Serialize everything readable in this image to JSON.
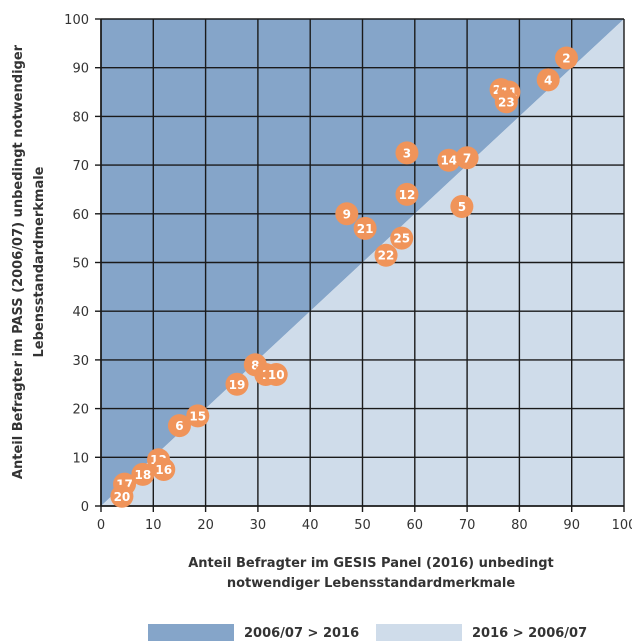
{
  "chart_data": {
    "type": "scatter",
    "title": "",
    "xlabel": [
      "Anteil Befragter im GESIS Panel (2016) unbedingt",
      "notwendiger Lebensstandardmerkmale"
    ],
    "ylabel": [
      "Anteil Befragter im PASS (2006/07) unbedingt notwendiger",
      "Lebensstandardmerkmale"
    ],
    "xlim": [
      0,
      100
    ],
    "ylim": [
      0,
      100
    ],
    "xticks": [
      0,
      10,
      20,
      30,
      40,
      50,
      60,
      70,
      80,
      90,
      100
    ],
    "yticks": [
      0,
      10,
      20,
      30,
      40,
      50,
      60,
      70,
      80,
      90,
      100
    ],
    "xtick_labels": [
      "0",
      "10",
      "20",
      "30",
      "40",
      "50",
      "60",
      "70",
      "80",
      "90",
      "100"
    ],
    "ytick_labels": [
      "0",
      "10",
      "20",
      "30",
      "40",
      "50",
      "60",
      "70",
      "80",
      "90",
      "100"
    ],
    "grid": true,
    "regions": [
      {
        "name": "2006/07 > 2016",
        "color": "#85a5c9"
      },
      {
        "name": "2016 > 2006/07",
        "color": "#cfdcea"
      }
    ],
    "point_color": "#f0945a",
    "points": [
      {
        "label": "2",
        "x": 89,
        "y": 92
      },
      {
        "label": "4",
        "x": 85.5,
        "y": 87.5
      },
      {
        "label": "24",
        "x": 76.5,
        "y": 85.5
      },
      {
        "label": "11",
        "x": 78,
        "y": 85
      },
      {
        "label": "23",
        "x": 77.5,
        "y": 83
      },
      {
        "label": "3",
        "x": 58.5,
        "y": 72.5
      },
      {
        "label": "14",
        "x": 66.5,
        "y": 71
      },
      {
        "label": "7",
        "x": 70,
        "y": 71.5
      },
      {
        "label": "12",
        "x": 58.5,
        "y": 64
      },
      {
        "label": "5",
        "x": 69,
        "y": 61.5
      },
      {
        "label": "9",
        "x": 47,
        "y": 60
      },
      {
        "label": "21",
        "x": 50.5,
        "y": 57
      },
      {
        "label": "25",
        "x": 57.5,
        "y": 55
      },
      {
        "label": "22",
        "x": 54.5,
        "y": 51.5
      },
      {
        "label": "8",
        "x": 29.5,
        "y": 29
      },
      {
        "label": "1",
        "x": 31.5,
        "y": 27
      },
      {
        "label": "10",
        "x": 33.5,
        "y": 27
      },
      {
        "label": "19",
        "x": 26,
        "y": 25
      },
      {
        "label": "15",
        "x": 18.5,
        "y": 18.5
      },
      {
        "label": "6",
        "x": 15,
        "y": 16.5
      },
      {
        "label": "13",
        "x": 11,
        "y": 9.5
      },
      {
        "label": "16",
        "x": 12,
        "y": 7.5
      },
      {
        "label": "18",
        "x": 8,
        "y": 6.5
      },
      {
        "label": "17",
        "x": 4.5,
        "y": 4.5
      },
      {
        "label": "20",
        "x": 4,
        "y": 2
      }
    ]
  }
}
